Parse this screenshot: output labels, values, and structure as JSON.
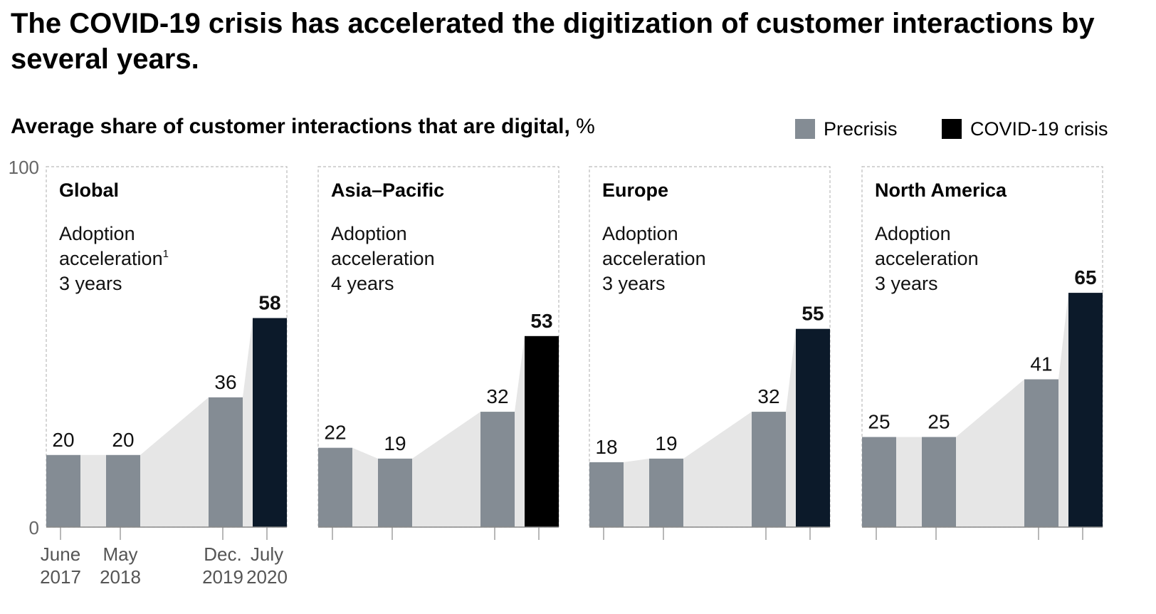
{
  "title": "The COVID-19 crisis has accelerated the digitization of customer interactions by several years.",
  "subtitle": {
    "bold": "Average share of customer interactions that are digital,",
    "unit": "%"
  },
  "legend": [
    {
      "label": "Precrisis",
      "color": "#848c94"
    },
    {
      "label": "COVID-19 crisis",
      "color": "#0c1a2a"
    }
  ],
  "colors": {
    "precrisis": "#848c94",
    "crisis_dark": "#0c1a2a",
    "crisis_black": "#000000",
    "area": "#e6e6e6",
    "axis": "#999999"
  },
  "chart_data": {
    "type": "bar",
    "ylim": [
      0,
      100
    ],
    "y_ticks": [
      "100",
      "0"
    ],
    "categories": [
      "June 2017",
      "May 2018",
      "Dec. 2019",
      "July 2020"
    ],
    "x_tick_labels": [
      {
        "line1": "June",
        "line2": "2017"
      },
      {
        "line1": "May",
        "line2": "2018"
      },
      {
        "line1": "Dec.",
        "line2": "2019"
      },
      {
        "line1": "July",
        "line2": "2020"
      }
    ],
    "panels": [
      {
        "name": "Global",
        "note_line1": "Adoption",
        "note_line2": "acceleration",
        "footnote": "1",
        "note_line3": "3 years",
        "values": [
          20,
          20,
          36,
          58
        ],
        "crisis_color": "#0c1a2a"
      },
      {
        "name": "Asia–Pacific",
        "note_line1": "Adoption",
        "note_line2": "acceleration",
        "footnote": "",
        "note_line3": "4 years",
        "values": [
          22,
          19,
          32,
          53
        ],
        "crisis_color": "#000000"
      },
      {
        "name": "Europe",
        "note_line1": "Adoption",
        "note_line2": "acceleration",
        "footnote": "",
        "note_line3": "3 years",
        "values": [
          18,
          19,
          32,
          55
        ],
        "crisis_color": "#0c1a2a"
      },
      {
        "name": "North America",
        "note_line1": "Adoption",
        "note_line2": "acceleration",
        "footnote": "",
        "note_line3": "3 years",
        "values": [
          25,
          25,
          41,
          65
        ],
        "crisis_color": "#0c1a2a"
      }
    ]
  }
}
